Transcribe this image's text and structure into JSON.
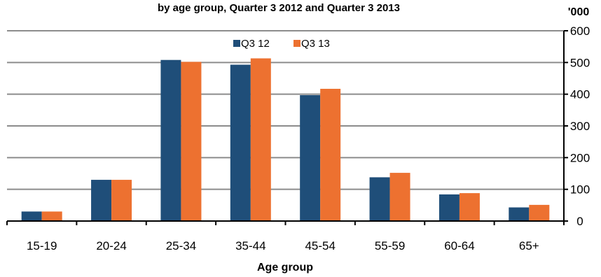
{
  "chart_data": {
    "type": "bar",
    "title": "by age group, Quarter 3 2012 and Quarter 3 2013",
    "unit": "'000",
    "xlabel": "Age group",
    "ylabel": "",
    "categories": [
      "15-19",
      "20-24",
      "25-34",
      "35-44",
      "45-54",
      "55-59",
      "60-64",
      "65+"
    ],
    "series": [
      {
        "name": "Q3 12",
        "color": "#1f4e79",
        "values": [
          30,
          130,
          508,
          493,
          397,
          138,
          84,
          43
        ]
      },
      {
        "name": "Q3 13",
        "color": "#ed7130",
        "values": [
          30,
          130,
          502,
          513,
          417,
          152,
          88,
          51
        ]
      }
    ],
    "ylim": [
      0,
      600
    ],
    "yticks": [
      0,
      100,
      200,
      300,
      400,
      500,
      600
    ],
    "grid": true,
    "legend_position": "top-center",
    "y_axis_side": "right"
  }
}
